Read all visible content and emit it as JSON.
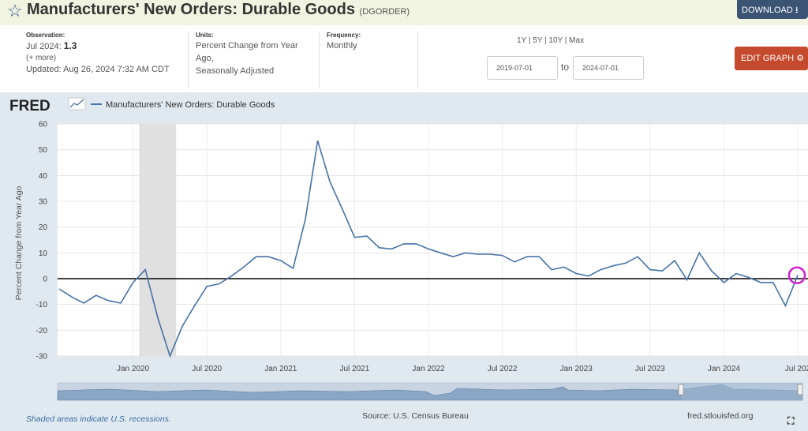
{
  "header": {
    "title": "Manufacturers' New Orders: Durable Goods",
    "series_id": "(DGORDER)",
    "download_label": "DOWNLOAD",
    "star_icon": "star-icon",
    "download_icon": "download-icon"
  },
  "meta": {
    "observation_label": "Observation:",
    "observation_date": "Jul 2024:",
    "observation_value": "1.3",
    "more": "(+ more)",
    "updated": "Updated: Aug 26, 2024 7:32 AM CDT",
    "units_label": "Units:",
    "units_line1": "Percent Change from Year",
    "units_line2": "Ago,",
    "units_line3": "Seasonally Adjusted",
    "frequency_label": "Frequency:",
    "frequency_value": "Monthly"
  },
  "range": {
    "links": "1Y | 5Y | 10Y | Max",
    "start": "2019-07-01",
    "to": "to",
    "end": "2024-07-01"
  },
  "edit_graph_label": "EDIT GRAPH",
  "edit_icon": "gear-icon",
  "footer": {
    "recession_note": "Shaded areas indicate U.S. recessions.",
    "source": "Source: U.S. Census Bureau",
    "site": "fred.stlouisfed.org"
  },
  "colors": {
    "line": "#4572a7",
    "recession": "#e0e0e0",
    "edit_button": "#c4492d",
    "download_button": "#3b5474",
    "highlight": "#d21fd2"
  },
  "chart_data": {
    "type": "line",
    "logo": "FRED",
    "legend": "Manufacturers' New Orders: Durable Goods",
    "ylabel": "Percent Change from Year Ago",
    "ylim": [
      -30,
      60
    ],
    "yticks": [
      "60",
      "50",
      "40",
      "30",
      "20",
      "10",
      "0",
      "-10",
      "-20",
      "-30"
    ],
    "xticks": [
      "Jan 2020",
      "Jul 2020",
      "Jan 2021",
      "Jul 2021",
      "Jan 2022",
      "Jul 2022",
      "Jan 2023",
      "Jul 2023",
      "Jan 2024",
      "Jul 202"
    ],
    "x_start": "2019-07",
    "recession": [
      "2020-02",
      "2020-04"
    ],
    "series": [
      {
        "name": "Manufacturers' New Orders: Durable Goods",
        "values": [
          -4.0,
          -7.0,
          -9.5,
          -6.5,
          -8.5,
          -9.5,
          -1.5,
          3.5,
          -15.0,
          -30.0,
          -18.5,
          -10.5,
          -3.0,
          -2.0,
          1.0,
          4.5,
          8.5,
          8.5,
          7.0,
          4.0,
          23.0,
          53.5,
          37.5,
          27.0,
          16.0,
          16.5,
          12.0,
          11.5,
          13.5,
          13.5,
          11.5,
          10.0,
          8.5,
          10.0,
          9.5,
          9.5,
          9.0,
          6.5,
          8.5,
          8.5,
          3.5,
          4.5,
          2.0,
          1.0,
          3.5,
          5.0,
          6.0,
          8.5,
          3.5,
          3.0,
          7.0,
          -0.5,
          10.0,
          3.0,
          -1.5,
          2.0,
          0.5,
          -1.5,
          -1.5,
          -10.5,
          1.3
        ]
      }
    ],
    "grid": true
  }
}
